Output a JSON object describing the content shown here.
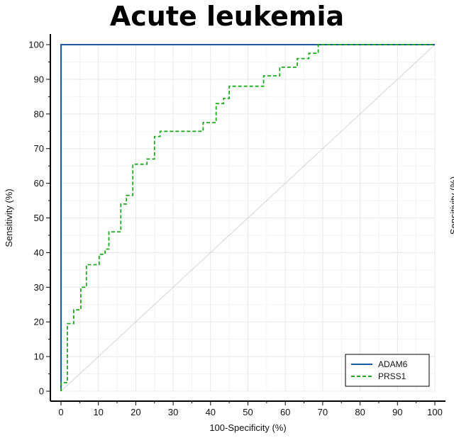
{
  "chart_data": {
    "type": "line",
    "title": "Acute leukemia",
    "xlabel": "100-Specificity (%)",
    "ylabel": "Sensitivity (%)",
    "xlim": [
      0,
      100
    ],
    "ylim": [
      0,
      100
    ],
    "xticks": [
      0,
      10,
      20,
      30,
      40,
      50,
      60,
      70,
      80,
      90,
      100
    ],
    "yticks": [
      0,
      10,
      20,
      30,
      40,
      50,
      60,
      70,
      80,
      90,
      100
    ],
    "grid": true,
    "legend_position": "bottom-right",
    "diagonal_reference": true,
    "series": [
      {
        "name": "ADAM6",
        "color": "#1f5aa0",
        "style": "solid",
        "points": [
          [
            0,
            0
          ],
          [
            0,
            100
          ],
          [
            100,
            100
          ]
        ]
      },
      {
        "name": "PRSS1",
        "color": "#22a822",
        "style": "dashed",
        "points": [
          [
            0,
            0
          ],
          [
            0,
            2.5
          ],
          [
            1.7,
            2.5
          ],
          [
            1.7,
            19.5
          ],
          [
            3.4,
            19.5
          ],
          [
            3.4,
            23.5
          ],
          [
            5.3,
            23.5
          ],
          [
            5.3,
            30
          ],
          [
            6.8,
            30
          ],
          [
            6.8,
            36.5
          ],
          [
            10.2,
            36.5
          ],
          [
            10.2,
            39.5
          ],
          [
            11.8,
            39.5
          ],
          [
            11.8,
            41
          ],
          [
            12.8,
            41
          ],
          [
            12.8,
            46
          ],
          [
            16,
            46
          ],
          [
            16,
            54
          ],
          [
            17.5,
            54
          ],
          [
            17.5,
            56.5
          ],
          [
            19.2,
            56.5
          ],
          [
            19.2,
            65.5
          ],
          [
            23,
            65.5
          ],
          [
            23,
            67
          ],
          [
            25,
            67
          ],
          [
            25,
            73.5
          ],
          [
            26.5,
            73.5
          ],
          [
            26.5,
            75
          ],
          [
            38,
            75
          ],
          [
            38,
            77.5
          ],
          [
            41.5,
            77.5
          ],
          [
            41.5,
            83
          ],
          [
            43.5,
            83
          ],
          [
            43.5,
            84.5
          ],
          [
            45,
            84.5
          ],
          [
            45,
            88
          ],
          [
            54.2,
            88
          ],
          [
            54.2,
            91
          ],
          [
            58.5,
            91
          ],
          [
            58.5,
            93.5
          ],
          [
            63.2,
            93.5
          ],
          [
            63.2,
            96
          ],
          [
            66.3,
            96
          ],
          [
            66.3,
            97.5
          ],
          [
            68.8,
            97.5
          ],
          [
            68.8,
            100
          ],
          [
            100,
            100
          ]
        ]
      }
    ]
  },
  "right_edge_fragment": "Sensitivity (%)"
}
